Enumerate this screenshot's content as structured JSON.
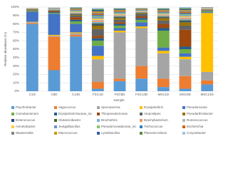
{
  "chart_data": {
    "type": "stacked_bar",
    "y_label": "Relative abundance (%)",
    "x_label": "Sample",
    "categories": [
      "C1D",
      "C8D",
      "C14D",
      "FSC1D",
      "FSC8D",
      "FSC14D",
      "MSC1D",
      "MSC8D",
      "MSC14D"
    ],
    "ylim": [
      0,
      100
    ],
    "yticks": [
      {
        "value": 0,
        "label": "0%"
      },
      {
        "value": 10,
        "label": "10%"
      },
      {
        "value": 20,
        "label": "20%"
      },
      {
        "value": 30,
        "label": "30%"
      },
      {
        "value": 40,
        "label": "40%"
      },
      {
        "value": 50,
        "label": "50%"
      },
      {
        "value": 60,
        "label": "60%"
      },
      {
        "value": 70,
        "label": "70%"
      },
      {
        "value": 80,
        "label": "80%"
      },
      {
        "value": 90,
        "label": "90%"
      },
      {
        "value": 100,
        "label": "100%"
      }
    ],
    "grid": true,
    "legend": "bottom",
    "series": [
      {
        "name": "Psychrobacter",
        "color": "#5b9bd5",
        "values": [
          80,
          25,
          65,
          3,
          12,
          15,
          5,
          3,
          8
        ]
      },
      {
        "name": "Vagococcus",
        "color": "#ed7d31",
        "values": [
          1,
          40,
          2,
          8,
          3,
          15,
          10,
          15,
          5
        ]
      },
      {
        "name": "Sporosarcina",
        "color": "#a5a5a5",
        "values": [
          1,
          1,
          2,
          27,
          55,
          45,
          30,
          20,
          10
        ]
      },
      {
        "name": "Erysipelothrix",
        "color": "#ffc000",
        "values": [
          0.5,
          1,
          1,
          4,
          2,
          2,
          3,
          3,
          70
        ]
      },
      {
        "name": "Pseudomonas",
        "color": "#4472c4",
        "values": [
          12,
          25,
          10,
          12,
          3,
          5,
          4,
          4,
          1
        ]
      },
      {
        "name": "Carnobacterium",
        "color": "#70ad47",
        "values": [
          1,
          1,
          3,
          6,
          3,
          3,
          20,
          5,
          1
        ]
      },
      {
        "name": "Erysipelotrichaceae_inc",
        "color": "#255e91",
        "values": [
          0.5,
          1,
          2,
          3,
          2,
          2,
          3,
          3,
          0.5
        ]
      },
      {
        "name": "Thiopseudomonas",
        "color": "#9e480e",
        "values": [
          0.5,
          1,
          3,
          3,
          2,
          2,
          5,
          20,
          0.5
        ]
      },
      {
        "name": "Atopostipes",
        "color": "#636363",
        "values": [
          0.5,
          1,
          2,
          8,
          3,
          3,
          4,
          5,
          0.5
        ]
      },
      {
        "name": "Pseudarthrobacter",
        "color": "#997300",
        "values": [
          0.5,
          0.5,
          1,
          4,
          2,
          1,
          3,
          4,
          0.5
        ]
      },
      {
        "name": "Enterococcus",
        "color": "#264478",
        "values": [
          0.1,
          0.2,
          0.6,
          1.4,
          0.8,
          0.4,
          0.8,
          1.2,
          0.2
        ]
      },
      {
        "name": "Glutamicibacter",
        "color": "#43682b",
        "values": [
          0.1,
          0.2,
          0.6,
          1.4,
          0.8,
          0.4,
          0.8,
          1.2,
          0.2
        ]
      },
      {
        "name": "Brochothrix",
        "color": "#7cafdd",
        "values": [
          0.1,
          0.2,
          0.6,
          1.4,
          0.8,
          0.4,
          0.8,
          1.2,
          0.2
        ]
      },
      {
        "name": "Brachybacterium",
        "color": "#f1975a",
        "values": [
          0.1,
          0.2,
          0.6,
          1.4,
          0.8,
          0.4,
          0.8,
          1.2,
          0.2
        ]
      },
      {
        "name": "Ruminococcus",
        "color": "#b7b7b7",
        "values": [
          0.1,
          0.2,
          0.6,
          1.4,
          0.8,
          0.4,
          0.8,
          1.2,
          0.2
        ]
      },
      {
        "name": "Acinetobacter",
        "color": "#ffcd33",
        "values": [
          0.1,
          0.2,
          0.6,
          1.4,
          0.8,
          0.4,
          0.8,
          1.2,
          0.2
        ]
      },
      {
        "name": "Jeotgalibacillus",
        "color": "#698ed0",
        "values": [
          0.1,
          0.2,
          0.6,
          1.4,
          0.8,
          0.4,
          0.8,
          1.2,
          0.2
        ]
      },
      {
        "name": "Pseudomonadaceae_inc",
        "color": "#8cc168",
        "values": [
          0.1,
          0.2,
          0.6,
          1.4,
          0.8,
          0.4,
          0.8,
          1.2,
          0.2
        ]
      },
      {
        "name": "Trichococcus",
        "color": "#327dc2",
        "values": [
          0.1,
          0.2,
          0.6,
          1.4,
          0.8,
          0.4,
          0.8,
          1.2,
          0.2
        ]
      },
      {
        "name": "Escherichia",
        "color": "#d26012",
        "values": [
          0.1,
          0.2,
          0.6,
          1.4,
          0.8,
          0.4,
          0.8,
          1.2,
          0.2
        ]
      },
      {
        "name": "Wautersiella",
        "color": "#848484",
        "values": [
          0.1,
          0.2,
          0.6,
          1.4,
          0.8,
          0.4,
          0.8,
          1.2,
          0.2
        ]
      },
      {
        "name": "Macrococcus",
        "color": "#cc9a00",
        "values": [
          0.1,
          0.2,
          0.6,
          1.4,
          0.8,
          0.4,
          0.8,
          1.2,
          0.2
        ]
      },
      {
        "name": "Lysinibacillus",
        "color": "#335aa1",
        "values": [
          0.1,
          0.2,
          0.6,
          1.4,
          0.8,
          0.4,
          0.8,
          1.2,
          0.2
        ]
      },
      {
        "name": "Planomicrobium",
        "color": "#5a8a39",
        "values": [
          0.1,
          0.2,
          0.6,
          1.4,
          0.8,
          0.4,
          0.8,
          1.2,
          0.2
        ]
      },
      {
        "name": "Corynebacter",
        "color": "#9dc3e6",
        "values": [
          0.1,
          0.2,
          0.6,
          1.4,
          0.8,
          0.4,
          0.8,
          1.2,
          0.2
        ]
      }
    ]
  }
}
